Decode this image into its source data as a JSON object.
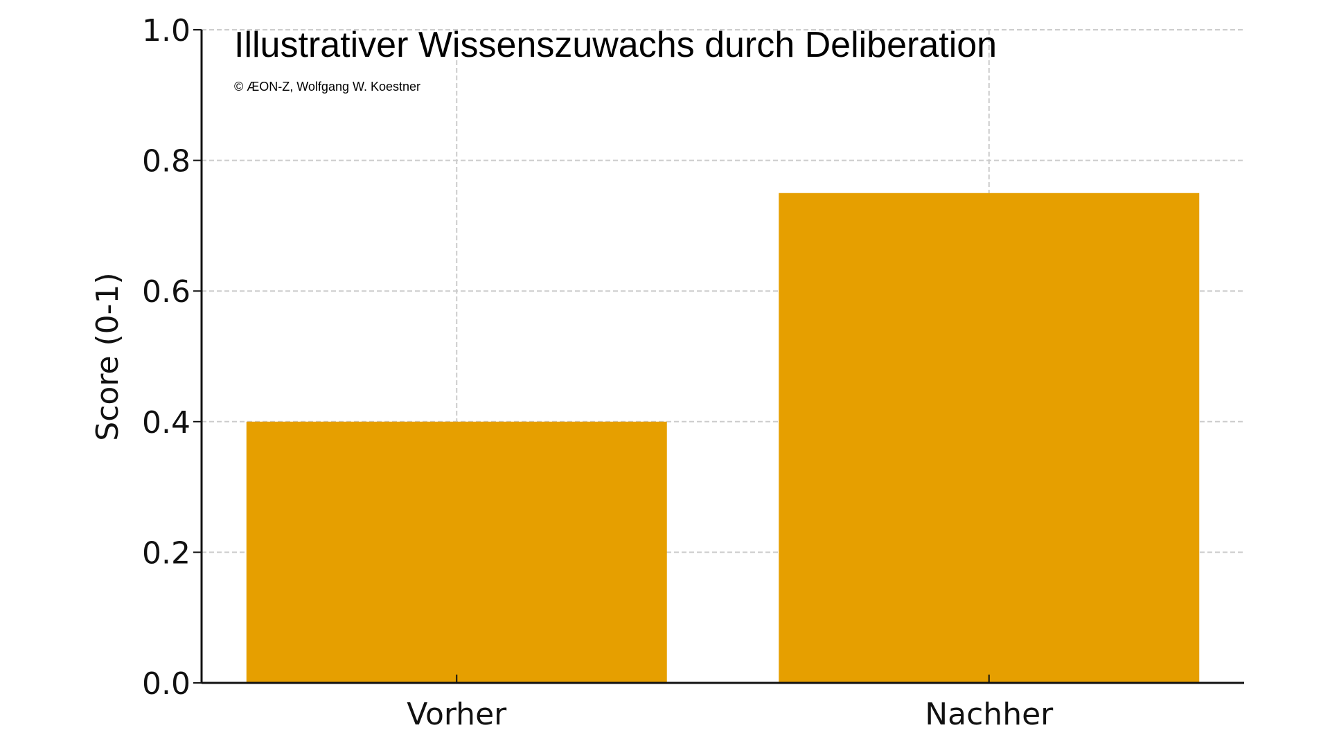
{
  "chart_data": {
    "type": "bar",
    "title": "Illustrativer Wissenszuwachs durch Deliberation",
    "subtitle": "© ÆON-Z, Wolfgang W. Koestner",
    "xlabel": "",
    "ylabel": "Score (0-1)",
    "categories": [
      "Vorher",
      "Nachher"
    ],
    "values": [
      0.4,
      0.75
    ],
    "ylim": [
      0,
      1.0
    ],
    "yticks": [
      "0.0",
      "0.2",
      "0.4",
      "0.6",
      "0.8",
      "1.0"
    ],
    "grid": true,
    "bar_color": "#E69F00"
  }
}
